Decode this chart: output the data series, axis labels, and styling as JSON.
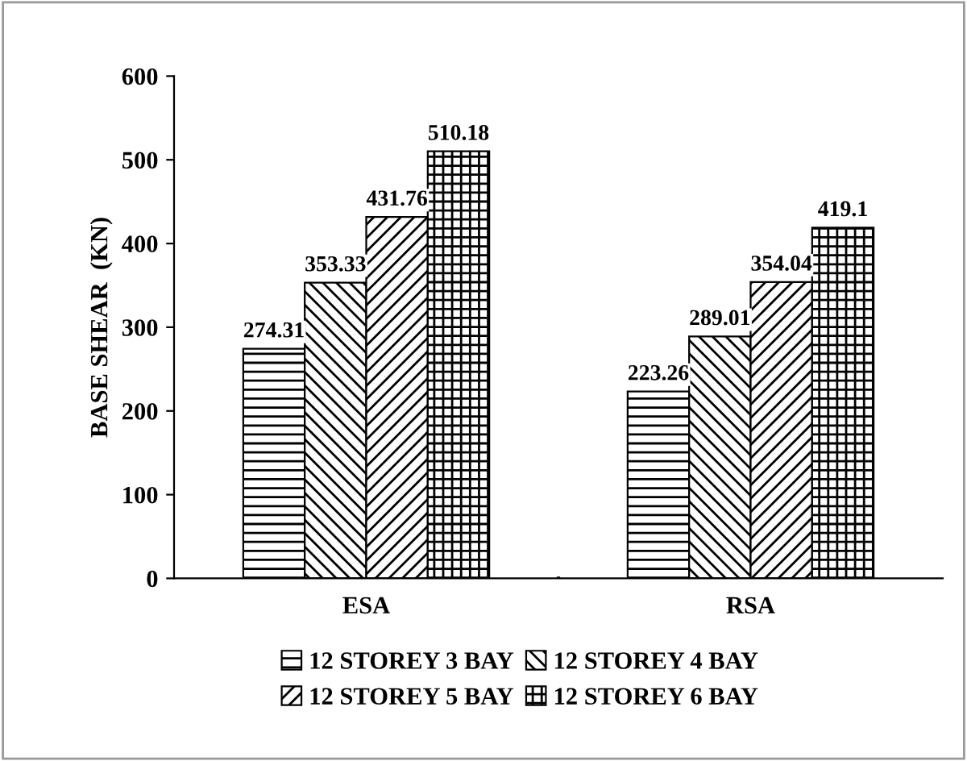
{
  "chart_data": {
    "type": "bar",
    "ylabel": "BASE SHEAR  (KN)",
    "categories": [
      "ESA",
      "RSA"
    ],
    "series": [
      {
        "name": "12 STOREY 3 BAY",
        "color": "#000000",
        "values": [
          274.31,
          223.26
        ]
      },
      {
        "name": "12 STOREY 4 BAY",
        "color": "#000000",
        "values": [
          353.33,
          289.01
        ]
      },
      {
        "name": "12 STOREY 5 BAY",
        "color": "#000000",
        "values": [
          431.76,
          354.04
        ]
      },
      {
        "name": "12 STOREY 6 BAY",
        "color": "#000000",
        "values": [
          510.18,
          419.1
        ]
      }
    ],
    "ylim": [
      0,
      600
    ],
    "yticks": [
      0,
      100,
      200,
      300,
      400,
      500,
      600
    ],
    "data_labels": true,
    "legend": "bottom",
    "grid": false
  }
}
